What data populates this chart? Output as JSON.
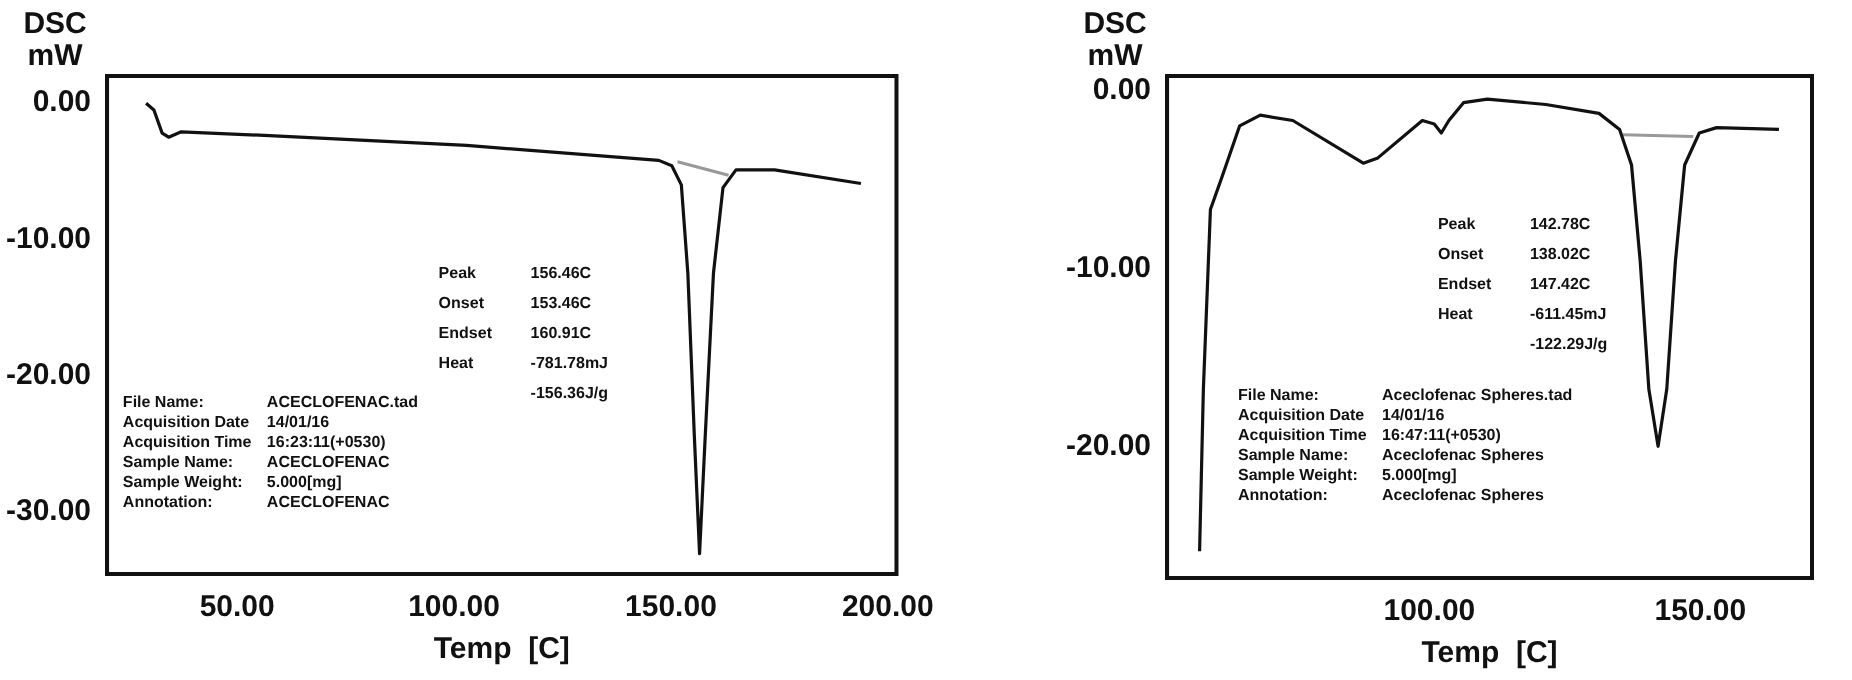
{
  "chart_data": [
    {
      "type": "line",
      "ylabel": "DSC\nmW",
      "xlabel": "Temp  [C]",
      "xlim": [
        20,
        202
      ],
      "ylim": [
        -34.6,
        2
      ],
      "xticks": [
        {
          "value": 50,
          "label": "50.00"
        },
        {
          "value": 100,
          "label": "100.00"
        },
        {
          "value": 150,
          "label": "150.00"
        },
        {
          "value": 200,
          "label": "200.00"
        }
      ],
      "yticks": [
        {
          "value": 0,
          "label": "0.00"
        },
        {
          "value": -10,
          "label": "-10.00"
        },
        {
          "value": -20,
          "label": "-20.00"
        },
        {
          "value": -30,
          "label": "-30.00"
        }
      ],
      "grid": false,
      "legend": false,
      "marker": "none",
      "line_style": "solid",
      "series": [
        {
          "color": "#111111",
          "x": [
            29.0,
            30.8,
            32.7,
            34.2,
            37.1,
            58.6,
            102.9,
            147.2,
            150.2,
            152.4,
            153.9,
            155.4,
            156.6,
            157.9,
            159.8,
            162.0,
            165.0,
            173.9,
            193.8
          ],
          "values": [
            0,
            -0.5,
            -2.2,
            -2.5,
            -2.1,
            -2.4,
            -3.1,
            -4.2,
            -4.6,
            -6.0,
            -12.5,
            -24.5,
            -33.1,
            -24.5,
            -12.5,
            -6.2,
            -4.9,
            -4.9,
            -5.9
          ]
        },
        {
          "color": "#999999",
          "x": [
            151.5,
            163.3
          ],
          "values": [
            -4.3,
            -5.3
          ]
        }
      ],
      "annotations": [
        "Peak\t156.46C\nOnset\t153.46C\nEndset\t160.91C\nHeat\t-781.78mJ\n\t-156.36J/g",
        "File Name:\tACECLOFENAC.tad\nAcquisition Date\t14/01/16\nAcquisition Time\t16:23:11(+0530)\nSample Name:\tACECLOFENAC\nSample Weight:\t5.000[mg]\nAnnotation:\tACECLOFENAC"
      ]
    },
    {
      "type": "line",
      "ylabel": "DSC\nmW",
      "xlabel": "Temp  [C]",
      "xlim": [
        51.6,
        170.6
      ],
      "ylim": [
        -27.4,
        0.8
      ],
      "xticks": [
        {
          "value": 100,
          "label": "100.00"
        },
        {
          "value": 150,
          "label": "150.00"
        }
      ],
      "yticks": [
        {
          "value": 0,
          "label": "0.00"
        },
        {
          "value": -10,
          "label": "-10.00"
        },
        {
          "value": -20,
          "label": "-20.00"
        }
      ],
      "grid": false,
      "legend": false,
      "marker": "none",
      "line_style": "solid",
      "series": [
        {
          "color": "#111111",
          "x": [
            57.6,
            58.3,
            59.6,
            61.7,
            65.0,
            68.8,
            74.8,
            87.8,
            90.5,
            98.7,
            100.9,
            102.2,
            103.6,
            106.3,
            110.7,
            121.5,
            131.3,
            135.1,
            137.3,
            138.9,
            140.5,
            142.2,
            143.8,
            145.4,
            147.1,
            149.8,
            153.0,
            164.5
          ],
          "values": [
            -25.9,
            -16.8,
            -6.7,
            -4.9,
            -2.0,
            -1.4,
            -1.7,
            -4.1,
            -3.8,
            -1.7,
            -1.9,
            -2.4,
            -1.7,
            -0.7,
            -0.5,
            -0.8,
            -1.3,
            -2.2,
            -4.2,
            -9.6,
            -16.8,
            -20.0,
            -16.8,
            -9.6,
            -4.2,
            -2.4,
            -2.1,
            -2.2
          ]
        },
        {
          "color": "#999999",
          "x": [
            135.7,
            148.7
          ],
          "values": [
            -2.5,
            -2.6
          ]
        }
      ],
      "annotations": [
        "Peak\t142.78C\nOnset\t138.02C\nEndset\t147.42C\nHeat\t-611.45mJ\n\t-122.29J/g",
        "File Name:\tAceclofenac Spheres.tad\nAcquisition Date\t14/01/16\nAcquisition Time\t16:47:11(+0530)\nSample Name:\tAceclofenac Spheres\nSample Weight:\t5.000[mg]\nAnnotation:\tAceclofenac Spheres"
      ]
    }
  ]
}
